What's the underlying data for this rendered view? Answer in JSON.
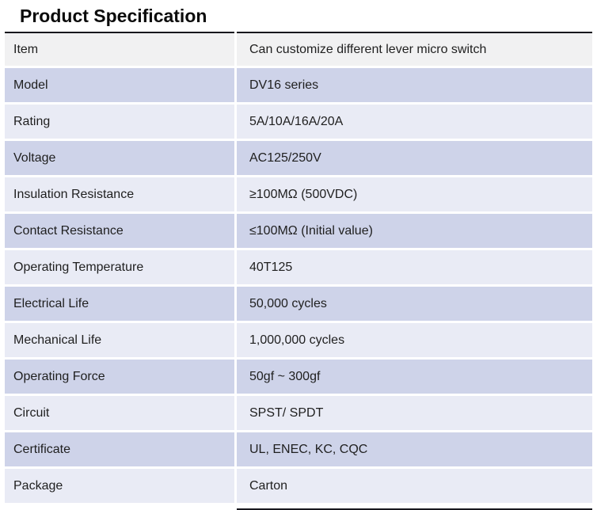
{
  "page": {
    "title": "Product Specification"
  },
  "table": {
    "rows": [
      {
        "label": "Item",
        "value": "Can customize different lever micro switch"
      },
      {
        "label": "Model",
        "value": "DV16 series"
      },
      {
        "label": "Rating",
        "value": "5A/10A/16A/20A"
      },
      {
        "label": "Voltage",
        "value": "AC125/250V"
      },
      {
        "label": "Insulation Resistance",
        "value": "≥100MΩ (500VDC)"
      },
      {
        "label": "Contact Resistance",
        "value": "≤100MΩ (Initial value)"
      },
      {
        "label": "Operating Temperature",
        "value": "40T125"
      },
      {
        "label": "Electrical Life",
        "value": "50,000 cycles"
      },
      {
        "label": "Mechanical Life",
        "value": "1,000,000 cycles"
      },
      {
        "label": "Operating Force",
        "value": "50gf ~ 300gf"
      },
      {
        "label": "Circuit",
        "value": "SPST/ SPDT"
      },
      {
        "label": "Certificate",
        "value": "UL, ENEC, KC, CQC"
      },
      {
        "label": "Package",
        "value": "Carton"
      }
    ],
    "colors": {
      "row_gray": "#f1f1f2",
      "row_lavender_dark": "#ced3e9",
      "row_lavender_light": "#e9ebf5",
      "rule_dark": "#17171d"
    }
  }
}
